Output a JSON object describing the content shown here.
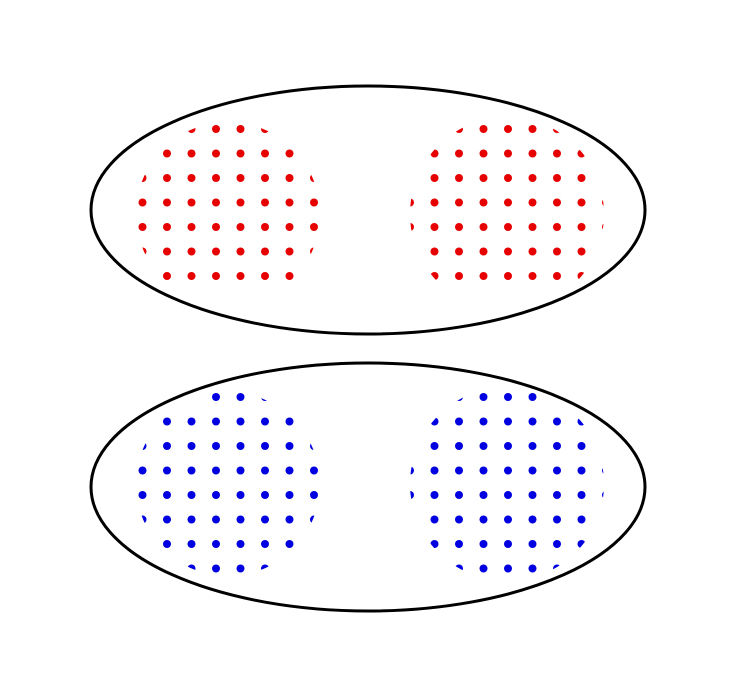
{
  "colors": {
    "background": "#ffffff",
    "outline": "#000000",
    "top_dots": "#e60000",
    "bottom_dots": "#0000e0"
  },
  "shapes": [
    {
      "name": "top-ellipse",
      "dot_color_key": "top_dots",
      "groups": 2
    },
    {
      "name": "bottom-ellipse",
      "dot_color_key": "bottom_dots",
      "groups": 2
    }
  ]
}
